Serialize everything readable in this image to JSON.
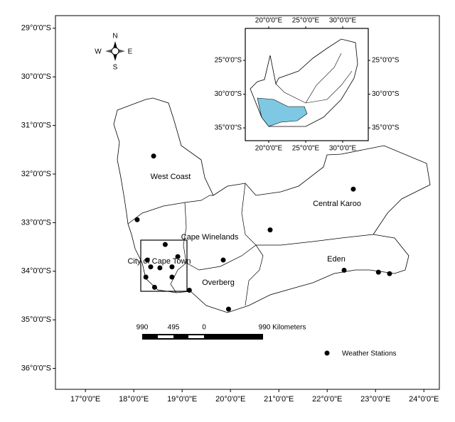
{
  "map": {
    "lon_lim": [
      16.38,
      24.32
    ],
    "lat_lim": [
      -28.74,
      -36.43
    ],
    "lon_ticks": [
      {
        "value": 17,
        "label": "17°0'0\"E"
      },
      {
        "value": 18,
        "label": "18°0'0\"E"
      },
      {
        "value": 19,
        "label": "19°0'0\"E"
      },
      {
        "value": 20,
        "label": "20°0'0\"E"
      },
      {
        "value": 21,
        "label": "21°0'0\"E"
      },
      {
        "value": 22,
        "label": "22°0'0\"E"
      },
      {
        "value": 23,
        "label": "23°0'0\"E"
      },
      {
        "value": 24,
        "label": "24°0'0\"E"
      }
    ],
    "lat_ticks": [
      {
        "value": -29,
        "label": "29°0'0\"S"
      },
      {
        "value": -30,
        "label": "30°0'0\"S"
      },
      {
        "value": -31,
        "label": "31°0'0\"S"
      },
      {
        "value": -32,
        "label": "32°0'0\"S"
      },
      {
        "value": -33,
        "label": "33°0'0\"S"
      },
      {
        "value": -34,
        "label": "34°0'0\"S"
      },
      {
        "value": -35,
        "label": "35°0'0\"S"
      },
      {
        "value": -36,
        "label": "36°0'0\"S"
      }
    ],
    "regions": [
      "West Coast",
      "Central Karoo",
      "Cape Winelands",
      "City of Cape Town",
      "Overberg",
      "Eden"
    ],
    "stations": {
      "lon": [
        18.41,
        18.07,
        18.65,
        18.28,
        18.91,
        18.35,
        18.54,
        18.79,
        18.25,
        18.79,
        18.43,
        19.15,
        19.85,
        19.96,
        20.82,
        22.54,
        22.35,
        23.06,
        23.29
      ],
      "lat": [
        -31.63,
        -32.94,
        -33.45,
        -33.77,
        -33.7,
        -33.91,
        -33.93,
        -33.91,
        -34.12,
        -34.12,
        -34.33,
        -34.39,
        -33.77,
        -34.78,
        -33.15,
        -32.31,
        -33.98,
        -34.02,
        -34.05
      ]
    },
    "legend": "Weather Stations",
    "scale_bar": {
      "labels": [
        "990",
        "495",
        "0"
      ],
      "unit_label": "990 Kilometers"
    },
    "compass": {
      "north": "N",
      "south": "S",
      "east": "E",
      "west": "W"
    },
    "inset": {
      "lon_lim": [
        16.83,
        33.46
      ],
      "lat_lim": [
        -20.26,
        -36.89
      ],
      "lon_ticks": [
        {
          "value": 20,
          "label": "20°0'0\"E"
        },
        {
          "value": 25,
          "label": "25°0'0\"E"
        },
        {
          "value": 30,
          "label": "30°0'0\"E"
        }
      ],
      "lat_ticks": [
        {
          "value": -25,
          "label": "25°0'0\"S"
        },
        {
          "value": -30,
          "label": "30°0'0\"S"
        },
        {
          "value": -35,
          "label": "35°0'0\"S"
        }
      ]
    }
  }
}
